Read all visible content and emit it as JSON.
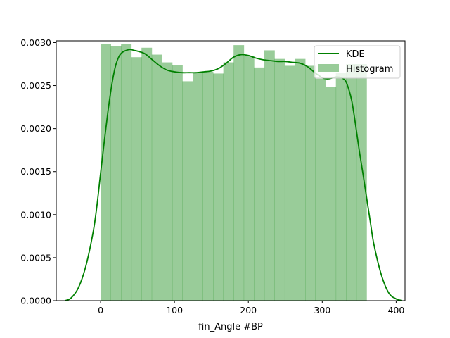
{
  "chart_data": {
    "type": "histogram",
    "title": "",
    "xlabel": "fin_Angle #BP",
    "ylabel": "",
    "xlim": [
      -60,
      412
    ],
    "ylim": [
      0,
      0.00302
    ],
    "x_ticks": [
      0,
      100,
      200,
      300,
      400
    ],
    "x_tick_labels": [
      "0",
      "100",
      "200",
      "300",
      "400"
    ],
    "y_ticks": [
      0.0,
      0.0005,
      0.001,
      0.0015,
      0.002,
      0.0025,
      0.003
    ],
    "y_tick_labels": [
      "0.0000",
      "0.0005",
      "0.0010",
      "0.0015",
      "0.0020",
      "0.0025",
      "0.0030"
    ],
    "grid": false,
    "legend_position": "top-right",
    "colors": {
      "kde": "#008000",
      "histogram": "#008000",
      "histogram_opacity": 0.4
    },
    "histogram": {
      "name": "Histogram",
      "bin_edges": [
        0,
        13.85,
        27.69,
        41.54,
        55.38,
        69.23,
        83.08,
        96.92,
        110.77,
        124.62,
        138.46,
        152.31,
        166.15,
        180,
        193.85,
        207.69,
        221.54,
        235.38,
        249.23,
        263.08,
        276.92,
        290.77,
        304.62,
        318.46,
        332.31,
        346.15,
        360
      ],
      "densities": [
        0.00298,
        0.00296,
        0.00298,
        0.00283,
        0.00294,
        0.00286,
        0.00277,
        0.00274,
        0.00255,
        0.00265,
        0.00266,
        0.00264,
        0.00277,
        0.00297,
        0.00284,
        0.00271,
        0.00291,
        0.00281,
        0.00273,
        0.00281,
        0.00273,
        0.00258,
        0.00248,
        0.00265,
        0.00275,
        0.00275
      ]
    },
    "kde": {
      "name": "KDE",
      "x": [
        -48,
        -40,
        -30,
        -20,
        -10,
        -5,
        0,
        5,
        10,
        15,
        20,
        25,
        30,
        35,
        40,
        45,
        50,
        60,
        70,
        80,
        90,
        100,
        110,
        120,
        130,
        140,
        150,
        160,
        170,
        180,
        190,
        200,
        210,
        220,
        230,
        240,
        250,
        260,
        270,
        280,
        290,
        295,
        300,
        305,
        310,
        320,
        330,
        335,
        340,
        345,
        350,
        355,
        360,
        365,
        370,
        380,
        390,
        400,
        408
      ],
      "y": [
        1e-06,
        3e-05,
        0.00015,
        0.0004,
        0.0008,
        0.0011,
        0.00148,
        0.00185,
        0.0022,
        0.0025,
        0.00272,
        0.00284,
        0.00289,
        0.00291,
        0.00292,
        0.00291,
        0.0029,
        0.00287,
        0.0028,
        0.00273,
        0.00268,
        0.00266,
        0.00265,
        0.00265,
        0.00265,
        0.00266,
        0.00267,
        0.0027,
        0.00276,
        0.00283,
        0.00286,
        0.00285,
        0.00282,
        0.0028,
        0.00279,
        0.00278,
        0.00278,
        0.00277,
        0.00276,
        0.00272,
        0.00265,
        0.00262,
        0.00259,
        0.00258,
        0.00258,
        0.0026,
        0.00257,
        0.00248,
        0.00232,
        0.00205,
        0.00175,
        0.00148,
        0.0012,
        0.00092,
        0.00065,
        0.0003,
        9e-05,
        2e-05,
        2e-06
      ]
    },
    "legend": [
      {
        "label": "KDE",
        "kind": "line"
      },
      {
        "label": "Histogram",
        "kind": "patch"
      }
    ]
  }
}
